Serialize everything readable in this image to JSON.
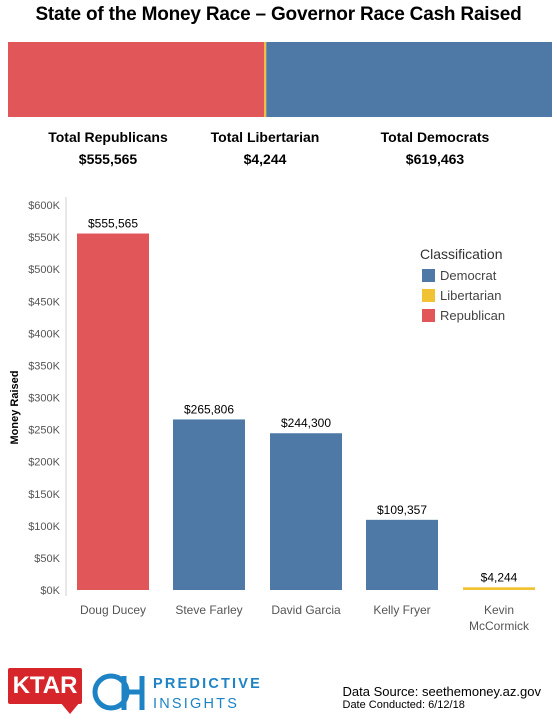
{
  "title": "State of the Money Race – Governor Race Cash Raised",
  "totals": {
    "republicans": {
      "label": "Total Republicans",
      "value": "$555,565"
    },
    "libertarian": {
      "label": "Total Libertarian",
      "value": "$4,244"
    },
    "democrats": {
      "label": "Total Democrats",
      "value": "$619,463"
    }
  },
  "colors": {
    "Democrat": "#4e79a7",
    "Libertarian": "#f1c232",
    "Republican": "#e15759"
  },
  "legend": {
    "title": "Classification",
    "items": [
      "Democrat",
      "Libertarian",
      "Republican"
    ]
  },
  "chart_data": [
    {
      "type": "bar",
      "orientation": "horizontal-stacked",
      "categories": [
        "Republican",
        "Libertarian",
        "Democrat"
      ],
      "values": [
        555565,
        4244,
        619463
      ]
    },
    {
      "type": "bar",
      "categories": [
        "Doug Ducey",
        "Steve Farley",
        "David Garcia",
        "Kelly Fryer",
        "Kevin McCormick"
      ],
      "category_lines": [
        [
          "Doug Ducey"
        ],
        [
          "Steve Farley"
        ],
        [
          "David Garcia"
        ],
        [
          "Kelly Fryer"
        ],
        [
          "Kevin",
          "McCormick"
        ]
      ],
      "values": [
        555565,
        265806,
        244300,
        109357,
        4244
      ],
      "value_labels": [
        "$555,565",
        "$265,806",
        "$244,300",
        "$109,357",
        "$4,244"
      ],
      "classification": [
        "Republican",
        "Democrat",
        "Democrat",
        "Democrat",
        "Libertarian"
      ],
      "ylabel": "Money Raised",
      "ylim": [
        0,
        600000
      ],
      "yticks": [
        0,
        50000,
        100000,
        150000,
        200000,
        250000,
        300000,
        350000,
        400000,
        450000,
        500000,
        550000,
        600000
      ],
      "ytick_labels": [
        "$0K",
        "$50K",
        "$100K",
        "$150K",
        "$200K",
        "$250K",
        "$300K",
        "$350K",
        "$400K",
        "$450K",
        "$500K",
        "$550K",
        "$600K"
      ],
      "grid": false,
      "legend_position": "top-right"
    }
  ],
  "footer": {
    "ktar": "KTAR",
    "pi_line1": "PREDICTIVE",
    "pi_line2": "INSIGHTS",
    "source": "Data Source: seethemoney.az.gov",
    "date": "Date Conducted: 6/12/18"
  }
}
